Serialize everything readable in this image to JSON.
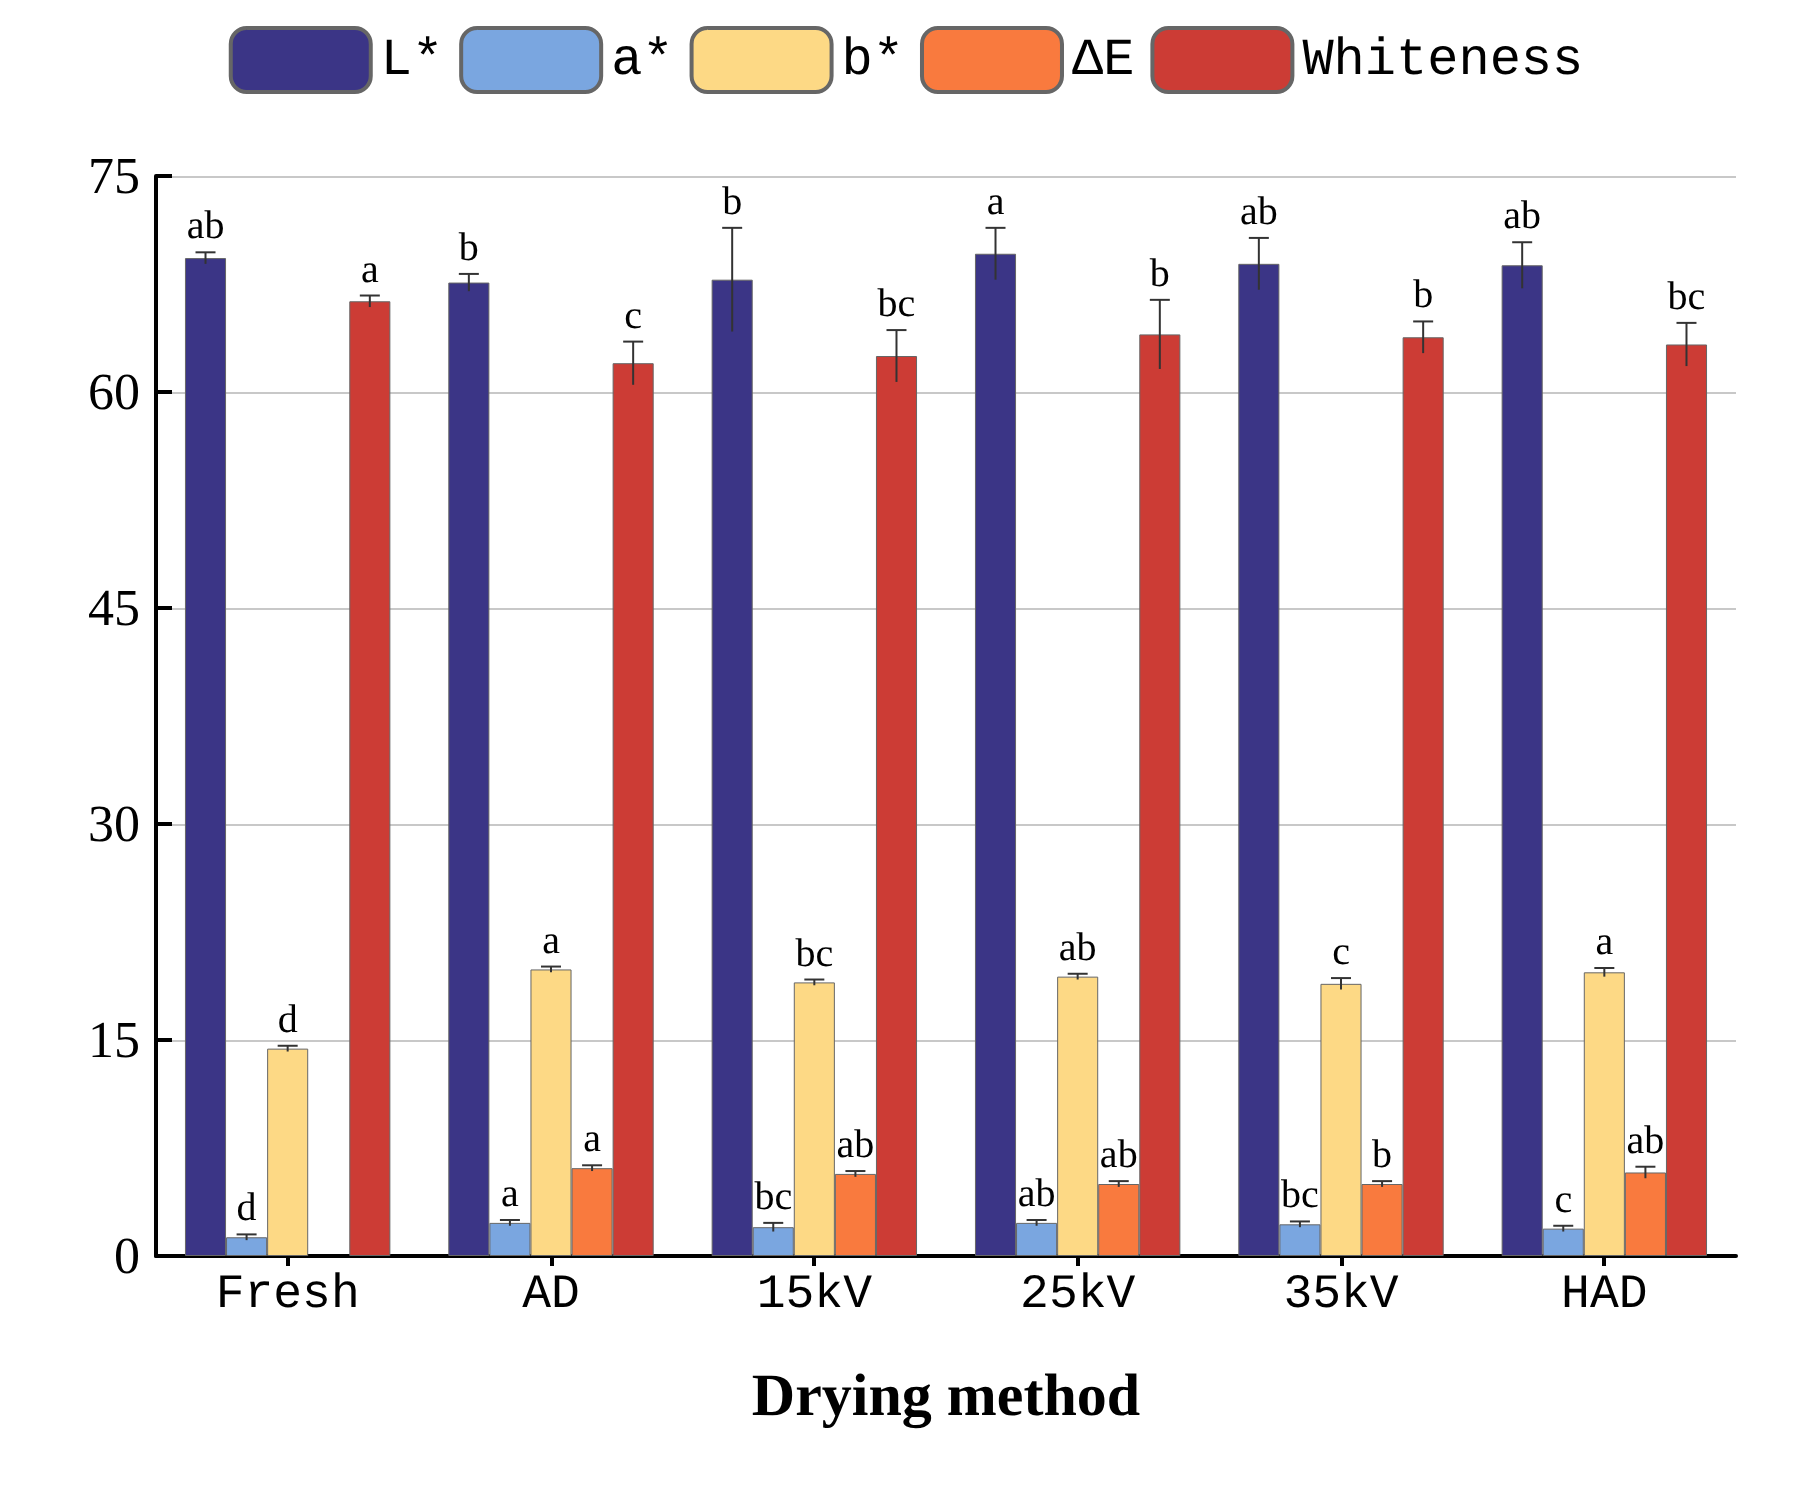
{
  "chart_data": {
    "type": "bar",
    "xlabel": "Drying method",
    "categories": [
      "Fresh",
      "AD",
      "15kV",
      "25kV",
      "35kV",
      "HAD"
    ],
    "series": [
      {
        "name": "L*",
        "color": "#3b3586",
        "values": [
          69.3,
          67.6,
          67.8,
          69.6,
          68.9,
          68.8
        ],
        "errors": [
          0.4,
          0.6,
          3.6,
          1.8,
          1.8,
          1.6
        ],
        "value_labels": [
          "ab",
          "b",
          "b",
          "a",
          "ab",
          "ab"
        ]
      },
      {
        "name": "a*",
        "color": "#7aa6e0",
        "values": [
          1.3,
          2.3,
          2.0,
          2.3,
          2.2,
          1.9
        ],
        "errors": [
          0.2,
          0.2,
          0.3,
          0.2,
          0.2,
          0.2
        ],
        "value_labels": [
          "d",
          "a",
          "bc",
          "ab",
          "bc",
          "c"
        ]
      },
      {
        "name": "b*",
        "color": "#fdd985",
        "values": [
          14.4,
          19.9,
          19.0,
          19.4,
          18.9,
          19.7
        ],
        "errors": [
          0.2,
          0.2,
          0.2,
          0.2,
          0.4,
          0.3
        ],
        "value_labels": [
          "d",
          "a",
          "bc",
          "ab",
          "c",
          "a"
        ]
      },
      {
        "name": "ΔE",
        "color": "#f97a3e",
        "values": [
          null,
          6.1,
          5.7,
          5.0,
          5.0,
          5.8
        ],
        "errors": [
          null,
          0.2,
          0.2,
          0.2,
          0.2,
          0.4
        ],
        "value_labels": [
          null,
          "a",
          "ab",
          "ab",
          "b",
          "ab"
        ]
      },
      {
        "name": "Whiteness",
        "color": "#cc3c35",
        "values": [
          66.3,
          62.0,
          62.5,
          64.0,
          63.8,
          63.3
        ],
        "errors": [
          0.4,
          1.5,
          1.8,
          2.4,
          1.1,
          1.5
        ],
        "value_labels": [
          "a",
          "c",
          "bc",
          "b",
          "b",
          "bc"
        ]
      }
    ],
    "ylim": [
      0,
      75
    ],
    "yticks": [
      0,
      15,
      30,
      45,
      60,
      75
    ],
    "grid": "y",
    "legend": "top"
  }
}
